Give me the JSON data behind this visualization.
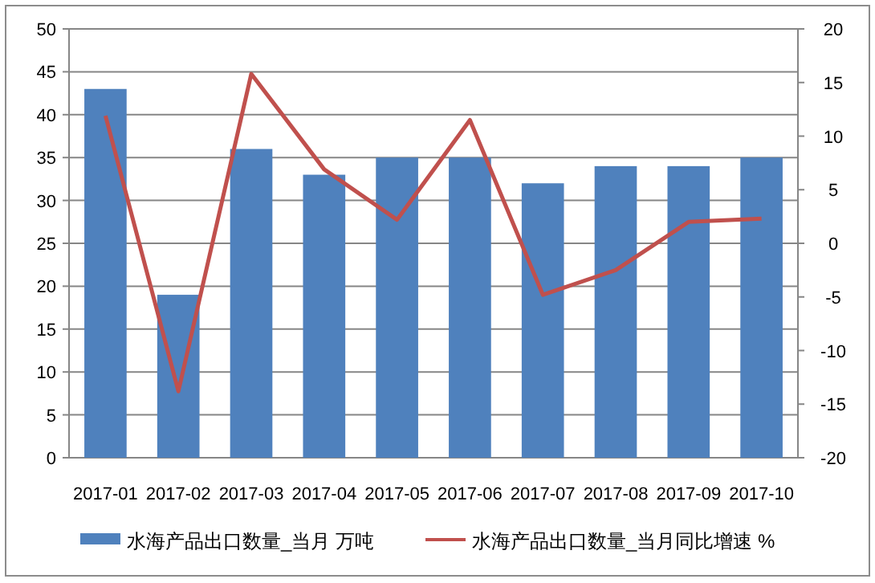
{
  "chart_data": {
    "type": "bar",
    "categories": [
      "2017-01",
      "2017-02",
      "2017-03",
      "2017-04",
      "2017-05",
      "2017-06",
      "2017-07",
      "2017-08",
      "2017-09",
      "2017-10"
    ],
    "series": [
      {
        "name": "水海产品出口数量_当月 万吨",
        "color": "#4f81bd",
        "values": [
          43,
          19,
          36,
          33,
          35,
          35,
          32,
          34,
          34,
          35
        ]
      },
      {
        "name": "水海产品出口数量_当月同比增速 %",
        "color": "#c0504d",
        "type": "line",
        "axis": "y2",
        "values": [
          11.9,
          -13.8,
          15.8,
          6.9,
          2.2,
          11.5,
          -4.8,
          -2.5,
          2.0,
          2.3
        ]
      }
    ],
    "ylim": [
      0,
      50
    ],
    "yticks": [
      0,
      5,
      10,
      15,
      20,
      25,
      30,
      35,
      40,
      45,
      50
    ],
    "y2lim": [
      -20,
      20
    ],
    "y2ticks": [
      -20,
      -15,
      -10,
      -5,
      0,
      5,
      10,
      15,
      20
    ],
    "grid": "y",
    "legend": "bottom",
    "marker": "none"
  }
}
